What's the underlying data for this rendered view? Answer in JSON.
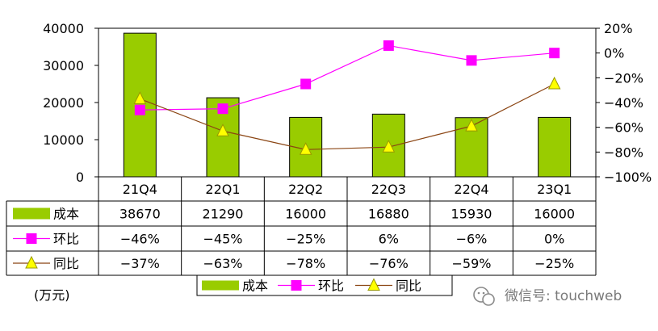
{
  "chart_data": {
    "type": "bar",
    "categories": [
      "21Q4",
      "22Q1",
      "22Q2",
      "22Q3",
      "22Q4",
      "23Q1"
    ],
    "y_left": {
      "ticks": [
        "40000",
        "30000",
        "20000",
        "10000",
        "0"
      ],
      "ylim": [
        0,
        40000
      ]
    },
    "y_right": {
      "ticks": [
        "20%",
        "0%",
        "−20%",
        "−40%",
        "−60%",
        "−80%",
        "−100%"
      ],
      "ylim": [
        -100,
        20
      ]
    },
    "series": [
      {
        "name": "成本",
        "type": "bar",
        "axis": "left",
        "color": "#99cc00",
        "values": [
          38670,
          21290,
          16000,
          16880,
          15930,
          16000
        ],
        "labels": [
          "38670",
          "21290",
          "16000",
          "16880",
          "15930",
          "16000"
        ]
      },
      {
        "name": "环比",
        "type": "line",
        "axis": "right",
        "color": "#ff00ff",
        "marker": "square",
        "values": [
          -46,
          -45,
          -25,
          6,
          -6,
          0
        ],
        "labels": [
          "−46%",
          "−45%",
          "−25%",
          "6%",
          "−6%",
          "0%"
        ]
      },
      {
        "name": "同比",
        "type": "line",
        "axis": "right",
        "color": "#8b4513",
        "marker": "triangle",
        "marker_color": "#ffff00",
        "values": [
          -37,
          -63,
          -78,
          -76,
          -59,
          -25
        ],
        "labels": [
          "−37%",
          "−63%",
          "−78%",
          "−76%",
          "−59%",
          "−25%"
        ]
      }
    ],
    "legend": {
      "placement": "bottom",
      "items": [
        "成本",
        "环比",
        "同比"
      ]
    },
    "unit_label": "(万元)"
  },
  "watermark": {
    "text": "微信号: touchweb",
    "icon": "wechat-icon"
  }
}
